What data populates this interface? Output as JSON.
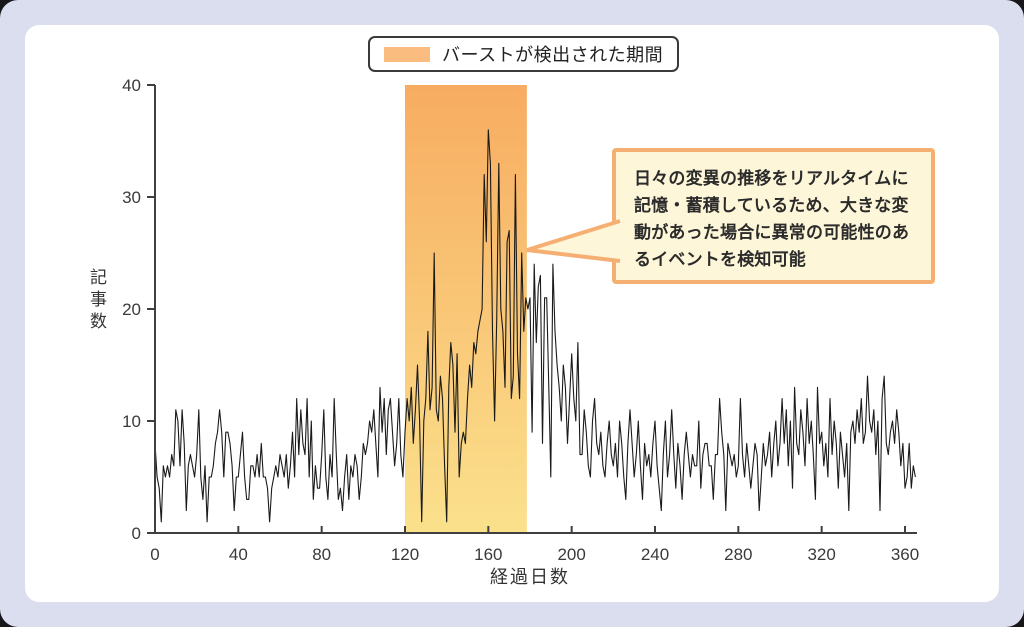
{
  "legend": {
    "label": "バーストが検出された期間"
  },
  "callout": {
    "text": "日々の変異の推移をリアルタイムに記憶・蓄積しているため、大きな変動があった場合に異常の可能性のあるイベントを検知可能"
  },
  "colors": {
    "bg_lavender": "#dbdeee",
    "bg_panel": "#ffffff",
    "swatch": "#fbbc80",
    "burst_top": "#f7ac61",
    "burst_bottom": "#fbe18c",
    "callout_border": "#f5af73",
    "callout_bg": "#fdf6d8",
    "axis": "#3f3f3f",
    "line": "#1a1a1a"
  },
  "chart_data": {
    "type": "line",
    "title": "",
    "xlabel": "経過日数",
    "ylabel": "記事数",
    "xlim": [
      0,
      365
    ],
    "ylim": [
      0,
      40
    ],
    "x_ticks": [
      0,
      40,
      80,
      120,
      160,
      200,
      240,
      280,
      320,
      360
    ],
    "y_ticks": [
      0,
      10,
      20,
      30,
      40
    ],
    "grid": false,
    "legend_position": "top-center",
    "burst_region": {
      "label": "バーストが検出された期間",
      "x_start": 120,
      "x_end": 178.5
    },
    "series": [
      {
        "name": "記事数",
        "x_start_day": 0,
        "values": [
          8,
          5,
          4,
          1,
          6,
          5,
          6,
          5,
          7,
          6,
          11,
          10,
          6,
          11,
          8,
          2,
          6,
          7,
          6,
          5,
          7,
          11,
          5,
          3,
          6,
          1,
          5,
          5,
          6,
          8,
          9,
          11,
          9,
          5,
          9,
          9,
          8,
          6,
          2,
          5,
          5,
          7,
          9,
          5,
          3,
          3,
          6,
          6,
          5,
          7,
          5,
          8,
          5,
          5,
          4,
          1,
          4,
          5,
          6,
          5,
          7,
          6,
          5,
          7,
          4,
          6,
          9,
          5,
          12,
          7,
          11,
          8,
          7,
          12,
          5,
          10,
          3,
          6,
          4,
          4,
          7,
          11,
          5,
          3,
          7,
          5,
          12,
          7,
          3,
          4,
          2,
          5,
          7,
          3,
          6,
          5,
          7,
          6,
          3,
          5,
          8,
          7,
          8,
          10,
          9,
          11,
          8,
          5,
          13,
          9,
          12,
          7,
          11,
          12,
          9,
          6,
          8,
          12,
          7,
          5,
          9,
          12,
          10,
          13,
          8,
          11,
          15,
          10,
          1,
          10,
          12,
          18,
          11,
          13,
          25,
          11,
          10,
          14,
          12,
          6,
          1,
          13,
          17,
          15,
          9,
          16,
          5,
          8,
          9,
          8,
          12,
          15,
          13,
          17,
          16,
          18,
          19,
          20,
          32,
          26,
          36,
          33,
          18,
          10,
          19,
          33,
          20,
          18,
          13,
          26,
          27,
          12,
          14,
          32,
          16,
          12,
          25,
          18,
          21,
          20,
          21,
          9,
          24,
          17,
          22,
          23,
          8,
          21,
          21,
          13,
          5,
          24,
          18,
          15,
          13,
          10,
          15,
          13,
          8,
          12,
          16,
          12,
          10,
          17,
          7,
          7,
          11,
          9,
          6,
          5,
          10,
          12,
          8,
          7,
          9,
          6,
          5,
          8,
          10,
          7,
          6,
          8,
          5,
          10,
          8,
          5,
          3,
          8,
          11,
          8,
          5,
          7,
          10,
          6,
          3,
          8,
          6,
          7,
          5,
          8,
          10,
          6,
          4,
          2,
          7,
          10,
          5,
          7,
          11,
          7,
          4,
          8,
          6,
          3,
          7,
          9,
          7,
          5,
          7,
          6,
          6,
          10,
          4,
          7,
          8,
          8,
          6,
          6,
          3,
          7,
          7,
          12,
          9,
          7,
          2,
          8,
          7,
          6,
          7,
          5,
          6,
          12,
          7,
          5,
          8,
          6,
          4,
          6,
          8,
          7,
          2,
          5,
          8,
          6,
          7,
          9,
          5,
          8,
          10,
          6,
          8,
          12,
          8,
          11,
          6,
          10,
          4,
          13,
          8,
          7,
          11,
          9,
          6,
          12,
          8,
          10,
          7,
          3,
          13,
          8,
          9,
          6,
          8,
          5,
          12,
          7,
          10,
          8,
          4,
          9,
          7,
          5,
          8,
          2,
          9,
          10,
          8,
          11,
          9,
          12,
          8,
          9,
          14,
          10,
          9,
          11,
          7,
          10,
          2,
          12,
          14,
          8,
          7,
          9,
          10,
          8,
          11,
          9,
          6,
          8,
          4,
          5,
          8,
          4,
          6,
          5
        ]
      }
    ]
  }
}
